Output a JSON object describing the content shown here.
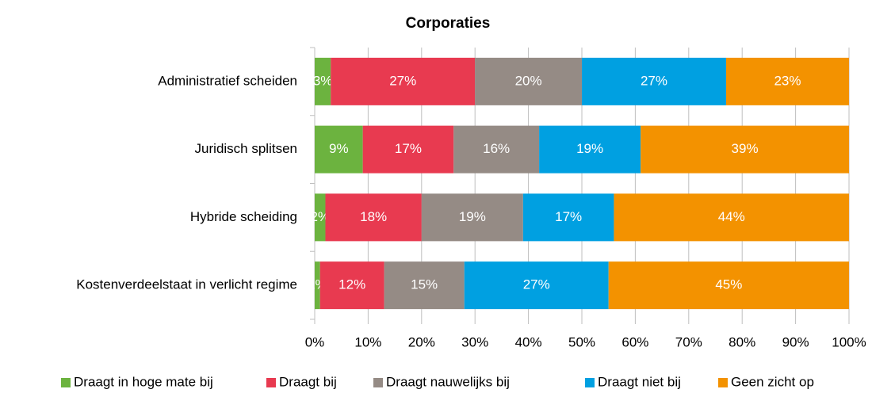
{
  "chart_data": {
    "type": "stacked-barh",
    "title": "Corporaties",
    "categories": [
      "Administratief scheiden",
      "Juridisch splitsen",
      "Hybride scheiding",
      "Kostenverdeelstaat in verlicht regime"
    ],
    "series": [
      {
        "name": "Draagt in hoge mate bij",
        "color": "#6cb33f",
        "values": [
          3,
          9,
          2,
          1
        ],
        "value_labels": [
          "3%",
          "9%",
          "2%",
          "1%"
        ]
      },
      {
        "name": "Draagt bij",
        "color": "#e83a50",
        "values": [
          27,
          17,
          18,
          12
        ],
        "value_labels": [
          "27%",
          "17%",
          "18%",
          "12%"
        ]
      },
      {
        "name": "Draagt nauwelijks bij",
        "color": "#958b85",
        "values": [
          20,
          16,
          19,
          15
        ],
        "value_labels": [
          "20%",
          "16%",
          "19%",
          "15%"
        ]
      },
      {
        "name": "Draagt niet bij",
        "color": "#00a0e1",
        "values": [
          27,
          19,
          17,
          27
        ],
        "value_labels": [
          "27%",
          "19%",
          "17%",
          "27%"
        ]
      },
      {
        "name": "Geen zicht op",
        "color": "#f39200",
        "values": [
          23,
          39,
          44,
          45
        ],
        "value_labels": [
          "23%",
          "39%",
          "44%",
          "45%"
        ]
      }
    ],
    "xlim": [
      0,
      100
    ],
    "xticks": [
      {
        "value": 0,
        "label": "0%"
      },
      {
        "value": 10,
        "label": "10%"
      },
      {
        "value": 20,
        "label": "20%"
      },
      {
        "value": 30,
        "label": "30%"
      },
      {
        "value": 40,
        "label": "40%"
      },
      {
        "value": 50,
        "label": "50%"
      },
      {
        "value": 60,
        "label": "60%"
      },
      {
        "value": 70,
        "label": "70%"
      },
      {
        "value": 80,
        "label": "80%"
      },
      {
        "value": 90,
        "label": "90%"
      },
      {
        "value": 100,
        "label": "100%"
      }
    ],
    "grid": true,
    "legend": "bottom"
  }
}
